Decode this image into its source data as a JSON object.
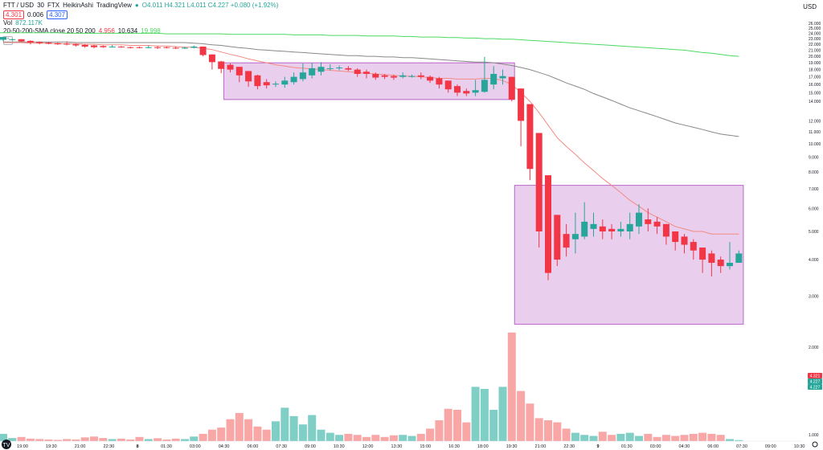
{
  "header": {
    "symbol": "FTT / USD",
    "interval": "30",
    "exchange": "FTX",
    "style": "HeikinAshi",
    "source": "TradingView",
    "ohlc": "O4.011 H4.321 L4.011 C4.227 +0.080 (+1.92%)",
    "bid": "4.301",
    "spread": "0.006",
    "ask": "4.307"
  },
  "volume": {
    "label": "Vol",
    "value": "872.117K"
  },
  "sma": {
    "label": "20-50-200-SMA close 20 50 200",
    "v20": "4.956",
    "v50": "10.634",
    "v200": "19.998"
  },
  "currency": "USD",
  "price_badges": [
    "4.321",
    "4.227",
    "4.227"
  ],
  "colors": {
    "up": "#26a69a",
    "down": "#f23645",
    "sma20": "#f28b82",
    "sma50": "#888888",
    "sma200": "#4cd964",
    "zone": "#e1bee7",
    "zone_border": "#ab47bc"
  },
  "chart_data": {
    "type": "candlestick",
    "style": "Heikin Ashi",
    "y_axis": {
      "scale": "log",
      "ticks": [
        "1.000",
        "2.000",
        "3.000",
        "4.000",
        "5.000",
        "6.000",
        "7.000",
        "8.000",
        "9.000",
        "10.000",
        "11.000",
        "12.000",
        "14.000",
        "15.000",
        "16.000",
        "17.000",
        "18.000",
        "19.000",
        "20.000",
        "21.000",
        "22.000",
        "23.000",
        "24.000",
        "25.000",
        "26.000"
      ]
    },
    "x_labels": [
      "19:00",
      "19:30",
      "21:00",
      "22:30",
      "8",
      "01:30",
      "03:00",
      "04:30",
      "06:00",
      "07:30",
      "09:00",
      "10:30",
      "12:00",
      "13:30",
      "15:00",
      "16:30",
      "18:00",
      "19:30",
      "21:00",
      "22:30",
      "9",
      "01:30",
      "03:00",
      "04:30",
      "06:00",
      "07:30",
      "09:00",
      "10:30"
    ],
    "zones": [
      {
        "from": "04:30",
        "to": "19:30",
        "top": 19.0,
        "bottom": 14.2
      },
      {
        "from": "19:30",
        "to": "09:00",
        "top": 7.2,
        "bottom": 2.4
      }
    ],
    "candles": [
      {
        "o": 22.8,
        "c": 23.3,
        "h": 23.4,
        "l": 22.5
      },
      {
        "o": 22.9,
        "c": 22.9,
        "h": 23.0,
        "l": 22.7
      },
      {
        "o": 22.9,
        "c": 22.5,
        "h": 22.9,
        "l": 22.4
      },
      {
        "o": 22.6,
        "c": 22.3,
        "h": 22.7,
        "l": 22.0
      },
      {
        "o": 22.4,
        "c": 22.2,
        "h": 22.5,
        "l": 22.0
      },
      {
        "o": 22.3,
        "c": 22.1,
        "h": 22.4,
        "l": 22.0
      },
      {
        "o": 22.2,
        "c": 22.0,
        "h": 22.3,
        "l": 21.9
      },
      {
        "o": 22.1,
        "c": 22.0,
        "h": 22.5,
        "l": 21.8
      },
      {
        "o": 22.0,
        "c": 21.8,
        "h": 22.1,
        "l": 21.6
      },
      {
        "o": 21.9,
        "c": 21.6,
        "h": 22.0,
        "l": 21.4
      },
      {
        "o": 21.8,
        "c": 21.5,
        "h": 21.9,
        "l": 21.3
      },
      {
        "o": 21.7,
        "c": 21.5,
        "h": 21.8,
        "l": 21.4
      },
      {
        "o": 21.6,
        "c": 21.6,
        "h": 21.9,
        "l": 21.5
      },
      {
        "o": 21.6,
        "c": 21.5,
        "h": 21.7,
        "l": 21.4
      },
      {
        "o": 21.5,
        "c": 21.4,
        "h": 21.6,
        "l": 21.3
      },
      {
        "o": 21.5,
        "c": 21.4,
        "h": 21.6,
        "l": 21.3
      },
      {
        "o": 21.5,
        "c": 21.5,
        "h": 21.8,
        "l": 21.3
      },
      {
        "o": 21.5,
        "c": 21.4,
        "h": 21.7,
        "l": 21.2
      },
      {
        "o": 21.5,
        "c": 21.4,
        "h": 21.6,
        "l": 21.3
      },
      {
        "o": 21.4,
        "c": 21.3,
        "h": 21.6,
        "l": 21.2
      },
      {
        "o": 21.4,
        "c": 21.4,
        "h": 21.6,
        "l": 21.2
      },
      {
        "o": 21.4,
        "c": 21.6,
        "h": 21.8,
        "l": 21.3
      },
      {
        "o": 21.6,
        "c": 20.2,
        "h": 21.6,
        "l": 20.0
      },
      {
        "o": 20.3,
        "c": 19.1,
        "h": 20.3,
        "l": 18.0
      },
      {
        "o": 19.2,
        "c": 18.1,
        "h": 19.3,
        "l": 17.5
      },
      {
        "o": 18.7,
        "c": 18.0,
        "h": 18.9,
        "l": 17.6
      },
      {
        "o": 18.4,
        "c": 17.2,
        "h": 18.4,
        "l": 16.3
      },
      {
        "o": 17.8,
        "c": 16.4,
        "h": 17.8,
        "l": 15.7
      },
      {
        "o": 17.2,
        "c": 15.8,
        "h": 17.3,
        "l": 15.4
      },
      {
        "o": 16.3,
        "c": 15.9,
        "h": 16.7,
        "l": 15.5
      },
      {
        "o": 16.0,
        "c": 16.1,
        "h": 16.4,
        "l": 15.7
      },
      {
        "o": 16.0,
        "c": 16.5,
        "h": 17.0,
        "l": 15.6
      },
      {
        "o": 16.3,
        "c": 17.0,
        "h": 17.6,
        "l": 16.0
      },
      {
        "o": 16.7,
        "c": 17.6,
        "h": 18.9,
        "l": 16.4
      },
      {
        "o": 17.2,
        "c": 18.2,
        "h": 19.0,
        "l": 16.8
      },
      {
        "o": 17.7,
        "c": 18.4,
        "h": 19.1,
        "l": 17.2
      },
      {
        "o": 18.2,
        "c": 18.2,
        "h": 18.8,
        "l": 17.9
      },
      {
        "o": 18.2,
        "c": 18.3,
        "h": 18.6,
        "l": 17.9
      },
      {
        "o": 18.2,
        "c": 18.0,
        "h": 18.5,
        "l": 17.8
      },
      {
        "o": 18.0,
        "c": 17.4,
        "h": 18.2,
        "l": 17.0
      },
      {
        "o": 17.7,
        "c": 17.4,
        "h": 18.0,
        "l": 16.8
      },
      {
        "o": 17.4,
        "c": 16.9,
        "h": 17.6,
        "l": 16.6
      },
      {
        "o": 17.2,
        "c": 17.0,
        "h": 17.4,
        "l": 16.7
      },
      {
        "o": 17.1,
        "c": 16.9,
        "h": 17.3,
        "l": 16.6
      },
      {
        "o": 17.0,
        "c": 17.2,
        "h": 17.6,
        "l": 16.8
      },
      {
        "o": 17.1,
        "c": 17.1,
        "h": 17.3,
        "l": 16.9
      },
      {
        "o": 17.2,
        "c": 17.0,
        "h": 17.6,
        "l": 16.7
      },
      {
        "o": 17.0,
        "c": 16.5,
        "h": 17.2,
        "l": 16.2
      },
      {
        "o": 16.8,
        "c": 16.0,
        "h": 17.0,
        "l": 15.5
      },
      {
        "o": 16.5,
        "c": 15.4,
        "h": 16.5,
        "l": 15.0
      },
      {
        "o": 15.8,
        "c": 15.0,
        "h": 16.0,
        "l": 14.6
      },
      {
        "o": 15.2,
        "c": 14.9,
        "h": 15.5,
        "l": 14.6
      },
      {
        "o": 15.0,
        "c": 15.3,
        "h": 16.6,
        "l": 14.6
      },
      {
        "o": 15.1,
        "c": 16.6,
        "h": 19.9,
        "l": 15.0
      },
      {
        "o": 16.0,
        "c": 17.4,
        "h": 18.5,
        "l": 15.4
      },
      {
        "o": 16.8,
        "c": 17.1,
        "h": 18.0,
        "l": 16.0
      },
      {
        "o": 17.0,
        "c": 14.2,
        "h": 17.0,
        "l": 14.0
      },
      {
        "o": 15.5,
        "c": 12.0,
        "h": 15.5,
        "l": 9.8
      },
      {
        "o": 13.7,
        "c": 8.2,
        "h": 13.7,
        "l": 7.5
      },
      {
        "o": 10.9,
        "c": 5.0,
        "h": 10.9,
        "l": 4.4
      },
      {
        "o": 7.8,
        "c": 3.6,
        "h": 7.8,
        "l": 3.4
      },
      {
        "o": 5.7,
        "c": 4.0,
        "h": 5.7,
        "l": 3.8
      },
      {
        "o": 4.9,
        "c": 4.4,
        "h": 5.3,
        "l": 4.1
      },
      {
        "o": 4.7,
        "c": 4.9,
        "h": 5.8,
        "l": 4.2
      },
      {
        "o": 4.8,
        "c": 5.4,
        "h": 6.3,
        "l": 4.7
      },
      {
        "o": 5.1,
        "c": 5.3,
        "h": 5.8,
        "l": 4.8
      },
      {
        "o": 5.2,
        "c": 5.0,
        "h": 5.5,
        "l": 4.7
      },
      {
        "o": 5.1,
        "c": 5.0,
        "h": 5.3,
        "l": 4.7
      },
      {
        "o": 5.0,
        "c": 5.1,
        "h": 5.4,
        "l": 4.8
      },
      {
        "o": 5.0,
        "c": 5.3,
        "h": 5.8,
        "l": 4.7
      },
      {
        "o": 5.2,
        "c": 5.8,
        "h": 6.2,
        "l": 4.9
      },
      {
        "o": 5.5,
        "c": 5.3,
        "h": 6.0,
        "l": 5.0
      },
      {
        "o": 5.4,
        "c": 5.2,
        "h": 5.6,
        "l": 4.9
      },
      {
        "o": 5.3,
        "c": 4.8,
        "h": 5.3,
        "l": 4.5
      },
      {
        "o": 5.0,
        "c": 4.6,
        "h": 5.0,
        "l": 4.3
      },
      {
        "o": 4.8,
        "c": 4.5,
        "h": 4.9,
        "l": 4.2
      },
      {
        "o": 4.6,
        "c": 4.3,
        "h": 4.7,
        "l": 4.0
      },
      {
        "o": 4.4,
        "c": 4.0,
        "h": 4.4,
        "l": 3.6
      },
      {
        "o": 4.2,
        "c": 3.9,
        "h": 4.3,
        "l": 3.5
      },
      {
        "o": 4.0,
        "c": 3.8,
        "h": 4.1,
        "l": 3.6
      },
      {
        "o": 3.8,
        "c": 3.9,
        "h": 4.6,
        "l": 3.7
      },
      {
        "o": 3.9,
        "c": 4.2,
        "h": 4.3,
        "l": 3.9
      }
    ],
    "volume": [
      0.35,
      0.15,
      0.2,
      0.12,
      0.1,
      0.08,
      0.06,
      0.1,
      0.08,
      0.18,
      0.22,
      0.15,
      0.1,
      0.12,
      0.08,
      0.2,
      0.1,
      0.14,
      0.08,
      0.12,
      0.1,
      0.22,
      0.35,
      0.55,
      0.65,
      1.05,
      1.35,
      1.05,
      0.7,
      0.55,
      0.95,
      1.6,
      1.2,
      0.8,
      1.25,
      0.55,
      0.4,
      0.3,
      0.35,
      0.3,
      0.2,
      0.3,
      0.2,
      0.28,
      0.3,
      0.25,
      0.35,
      0.6,
      1.0,
      1.55,
      1.5,
      0.9,
      2.6,
      2.5,
      1.5,
      2.6,
      5.2,
      2.4,
      1.8,
      1.1,
      1.0,
      0.9,
      0.6,
      0.4,
      0.3,
      0.25,
      0.45,
      0.3,
      0.35,
      0.4,
      0.25,
      0.35,
      0.2,
      0.3,
      0.25,
      0.3,
      0.35,
      0.4,
      0.35,
      0.3,
      0.1,
      0.05
    ],
    "sma20": [
      22.3,
      22.3,
      22.3,
      22.2,
      22.2,
      22.2,
      22.1,
      22.1,
      22.1,
      22.0,
      22.0,
      21.9,
      21.9,
      21.9,
      21.8,
      21.8,
      21.8,
      21.7,
      21.7,
      21.6,
      21.5,
      21.5,
      21.3,
      21.1,
      20.7,
      20.3,
      20.0,
      19.6,
      19.3,
      19.0,
      18.7,
      18.5,
      18.3,
      18.2,
      18.1,
      18.0,
      17.9,
      17.8,
      17.7,
      17.6,
      17.5,
      17.4,
      17.3,
      17.2,
      17.1,
      17.1,
      17.0,
      16.9,
      16.8,
      16.8,
      16.7,
      16.7,
      16.7,
      16.8,
      16.8,
      16.5,
      16.0,
      15.0,
      14.0,
      12.8,
      11.6,
      10.5,
      9.8,
      9.2,
      8.6,
      8.1,
      7.6,
      7.2,
      6.8,
      6.4,
      6.1,
      5.8,
      5.6,
      5.4,
      5.2,
      5.1,
      5.0,
      5.0,
      4.9,
      4.9,
      4.9,
      4.9
    ],
    "sma50": [
      22.4,
      22.4,
      22.4,
      22.4,
      22.4,
      22.4,
      22.4,
      22.4,
      22.3,
      22.3,
      22.3,
      22.3,
      22.3,
      22.3,
      22.3,
      22.3,
      22.3,
      22.3,
      22.3,
      22.3,
      22.3,
      22.2,
      22.1,
      21.9,
      21.8,
      21.6,
      21.4,
      21.3,
      21.1,
      21.0,
      20.9,
      20.8,
      20.7,
      20.6,
      20.5,
      20.4,
      20.3,
      20.2,
      20.1,
      20.1,
      20.0,
      20.0,
      19.9,
      19.9,
      19.8,
      19.8,
      19.7,
      19.6,
      19.5,
      19.4,
      19.3,
      19.2,
      19.1,
      19.1,
      19.0,
      18.8,
      18.6,
      18.3,
      18.0,
      17.6,
      17.2,
      16.7,
      16.2,
      15.8,
      15.4,
      14.9,
      14.5,
      14.1,
      13.7,
      13.3,
      13.0,
      12.7,
      12.4,
      12.1,
      11.8,
      11.6,
      11.4,
      11.2,
      11.0,
      10.8,
      10.7,
      10.6
    ],
    "sma200": [
      24.1,
      24.1,
      24.1,
      24.1,
      24.1,
      24.1,
      24.1,
      24.0,
      24.0,
      24.0,
      24.0,
      24.0,
      24.0,
      24.0,
      24.0,
      24.0,
      24.0,
      24.0,
      23.9,
      23.9,
      23.9,
      23.9,
      23.9,
      23.9,
      23.9,
      23.8,
      23.8,
      23.8,
      23.8,
      23.8,
      23.8,
      23.8,
      23.7,
      23.7,
      23.7,
      23.7,
      23.6,
      23.6,
      23.6,
      23.6,
      23.5,
      23.5,
      23.5,
      23.5,
      23.4,
      23.4,
      23.3,
      23.3,
      23.3,
      23.2,
      23.2,
      23.1,
      23.1,
      23.0,
      23.0,
      22.9,
      22.9,
      22.8,
      22.7,
      22.6,
      22.5,
      22.4,
      22.3,
      22.2,
      22.1,
      22.0,
      21.9,
      21.8,
      21.7,
      21.6,
      21.5,
      21.4,
      21.3,
      21.2,
      21.1,
      21.0,
      20.8,
      20.6,
      20.5,
      20.3,
      20.1,
      20.0
    ]
  }
}
